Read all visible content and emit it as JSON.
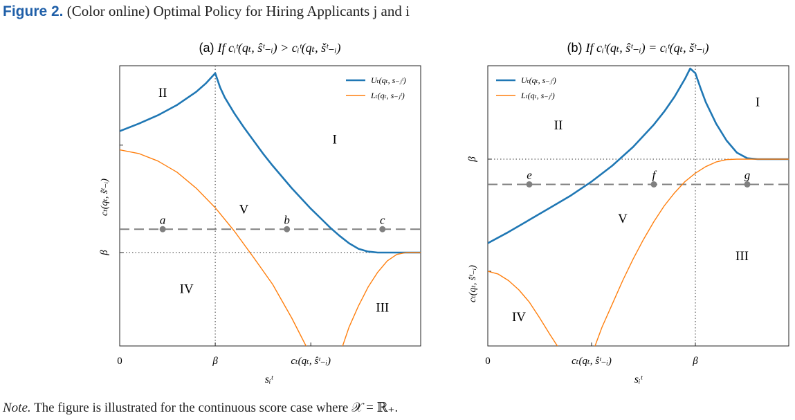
{
  "figure": {
    "label": "Figure 2.",
    "caption": "(Color online) Optimal Policy for Hiring Applicants j and i",
    "note_label": "Note.",
    "note_text": "The figure is illustrated for the continuous score case where 𝒳 = ℝ₊."
  },
  "chart_data": [
    {
      "type": "line",
      "panel_label": "(a)",
      "title": "If cᵢᵗ(qₜ, ŝᵗ₋ᵢ) > cᵢᵗ(qₜ, šᵗ₋ᵢ)",
      "xlabel": "sᵢᵗ",
      "ylabel": "cₜ(qₜ, ŝᵗ₋ᵢ)",
      "x_ticks": [
        {
          "label": "0",
          "x": 0
        },
        {
          "label": "β",
          "x": 1
        },
        {
          "label": "cₜ(qₜ, ŝᵗ₋ᵢ)",
          "x": 2
        }
      ],
      "y_ticks": [
        {
          "label": "β",
          "y": 1
        },
        {
          "label": "",
          "y": 2.15
        }
      ],
      "xlim": [
        0,
        3.15
      ],
      "ylim": [
        0,
        3
      ],
      "grid": false,
      "legend": "top-right",
      "series": [
        {
          "name": "Uₜ(qₜ, s₋ⱼᵗ)",
          "color": "#1f77b4",
          "x": [
            0,
            0.2,
            0.4,
            0.6,
            0.8,
            0.9,
            1,
            1.05,
            1.1,
            1.2,
            1.3,
            1.4,
            1.5,
            1.6,
            1.7,
            1.8,
            1.9,
            2.0,
            2.1,
            2.2,
            2.3,
            2.4,
            2.5,
            2.6,
            2.7,
            2.8,
            2.9,
            3.0,
            3.15
          ],
          "y": [
            2.3,
            2.38,
            2.47,
            2.58,
            2.72,
            2.81,
            2.92,
            2.77,
            2.66,
            2.49,
            2.34,
            2.2,
            2.06,
            1.93,
            1.81,
            1.69,
            1.58,
            1.47,
            1.37,
            1.27,
            1.18,
            1.1,
            1.04,
            1.01,
            1.0,
            1.0,
            1.0,
            1.0,
            1.0
          ]
        },
        {
          "name": "Lₜ(qₜ, s₋ⱼᵗ)",
          "color": "#ff7f0e",
          "x": [
            0,
            0.2,
            0.4,
            0.6,
            0.8,
            1.0,
            1.2,
            1.4,
            1.6,
            1.8,
            1.9,
            2.0,
            2.3,
            2.4,
            2.5,
            2.6,
            2.7,
            2.8,
            2.9,
            3.0,
            3.15
          ],
          "y": [
            2.1,
            2.06,
            1.98,
            1.86,
            1.69,
            1.48,
            1.23,
            0.95,
            0.66,
            0.3,
            0.1,
            -0.1,
            -0.1,
            0.2,
            0.43,
            0.63,
            0.79,
            0.91,
            0.98,
            1.0,
            1.0
          ]
        }
      ],
      "reference_line": {
        "name": "cₜ(qₜ, ŝᵗ₋ᵢ)",
        "y": 1.25,
        "style": "dashed"
      },
      "points": [
        {
          "label": "a",
          "x": 0.45,
          "y": 1.25
        },
        {
          "label": "b",
          "x": 1.75,
          "y": 1.25
        },
        {
          "label": "c",
          "x": 2.75,
          "y": 1.25
        }
      ],
      "regions": [
        {
          "label": "I",
          "x": 2.25,
          "y": 2.2
        },
        {
          "label": "II",
          "x": 0.45,
          "y": 2.7
        },
        {
          "label": "III",
          "x": 2.75,
          "y": 0.4
        },
        {
          "label": "IV",
          "x": 0.7,
          "y": 0.6
        },
        {
          "label": "V",
          "x": 1.3,
          "y": 1.45
        }
      ]
    },
    {
      "type": "line",
      "panel_label": "(b)",
      "title": "If cᵢᵗ(qₜ, ŝᵗ₋ᵢ) = cᵢᵗ(qₜ, šᵗ₋ᵢ)",
      "xlabel": "sᵢᵗ",
      "ylabel": "cₜ(qₜ, ŝᵗ₋ᵢ)",
      "x_ticks": [
        {
          "label": "0",
          "x": 0
        },
        {
          "label": "cₜ(qₜ, ŝᵗ₋ᵢ)",
          "x": 1
        },
        {
          "label": "β",
          "x": 2
        }
      ],
      "y_ticks": [
        {
          "label": "β",
          "y": 2
        },
        {
          "label": "",
          "y": 0.8
        }
      ],
      "xlim": [
        0,
        2.9
      ],
      "ylim": [
        0,
        3
      ],
      "grid": false,
      "legend": "top-left",
      "series": [
        {
          "name": "Uₜ(qₜ, s₋ⱼᵗ)",
          "color": "#1f77b4",
          "x": [
            0,
            0.2,
            0.4,
            0.6,
            0.8,
            1.0,
            1.2,
            1.4,
            1.6,
            1.7,
            1.8,
            1.9,
            1.95,
            2.0,
            2.05,
            2.1,
            2.2,
            2.3,
            2.4,
            2.5,
            2.6,
            2.7,
            2.9
          ],
          "y": [
            1.1,
            1.22,
            1.35,
            1.48,
            1.61,
            1.76,
            1.93,
            2.13,
            2.37,
            2.51,
            2.67,
            2.86,
            2.97,
            2.92,
            2.76,
            2.61,
            2.38,
            2.2,
            2.07,
            2.01,
            2.0,
            2.0,
            2.0
          ]
        },
        {
          "name": "Lₜ(qₜ, s₋ⱼᵗ)",
          "color": "#ff7f0e",
          "x": [
            0,
            0.1,
            0.2,
            0.3,
            0.4,
            0.5,
            0.6,
            0.7,
            0.78,
            1.0,
            1.1,
            1.2,
            1.3,
            1.4,
            1.5,
            1.6,
            1.7,
            1.8,
            1.9,
            2.0,
            2.1,
            2.2,
            2.3,
            2.4,
            2.5,
            2.6,
            2.9
          ],
          "y": [
            0.8,
            0.77,
            0.7,
            0.6,
            0.47,
            0.3,
            0.12,
            -0.05,
            -0.1,
            -0.1,
            0.2,
            0.45,
            0.7,
            0.93,
            1.14,
            1.33,
            1.5,
            1.64,
            1.76,
            1.85,
            1.92,
            1.97,
            1.995,
            2.0,
            2.0,
            2.0,
            2.0
          ]
        }
      ],
      "reference_line": {
        "name": "cₜ(qₜ, ŝᵗ₋ᵢ)",
        "y": 1.73,
        "style": "dashed"
      },
      "points": [
        {
          "label": "e",
          "x": 0.4,
          "y": 1.73
        },
        {
          "label": "f",
          "x": 1.6,
          "y": 1.73
        },
        {
          "label": "g",
          "x": 2.5,
          "y": 1.73
        }
      ],
      "regions": [
        {
          "label": "I",
          "x": 2.6,
          "y": 2.6
        },
        {
          "label": "II",
          "x": 0.68,
          "y": 2.35
        },
        {
          "label": "III",
          "x": 2.45,
          "y": 0.95
        },
        {
          "label": "IV",
          "x": 0.3,
          "y": 0.3
        },
        {
          "label": "V",
          "x": 1.3,
          "y": 1.35
        }
      ]
    }
  ]
}
